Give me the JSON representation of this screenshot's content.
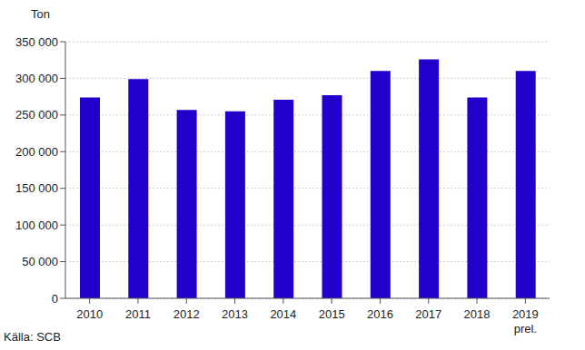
{
  "chart_data": {
    "type": "bar",
    "y_label": "Ton",
    "annotations": [
      "Källa: SCB"
    ],
    "categories": [
      "2010",
      "2011",
      "2012",
      "2013",
      "2014",
      "2015",
      "2016",
      "2017",
      "2018",
      "2019\nprel."
    ],
    "values": [
      274000,
      299000,
      257000,
      255000,
      271000,
      277000,
      310000,
      326000,
      274000,
      310000
    ],
    "color": "#2200cc",
    "ylim": [
      0,
      350000
    ],
    "yticks": [
      0,
      {
        "value": 50000,
        "label": "50 000"
      },
      {
        "value": 100000,
        "label": "100 000"
      },
      {
        "value": 150000,
        "label": "150 000"
      },
      {
        "value": 200000,
        "label": "200 000"
      },
      {
        "value": 250000,
        "label": "250 000"
      },
      {
        "value": 300000,
        "label": "300 000"
      },
      {
        "value": 350000,
        "label": "350 000"
      }
    ],
    "grid": true
  }
}
